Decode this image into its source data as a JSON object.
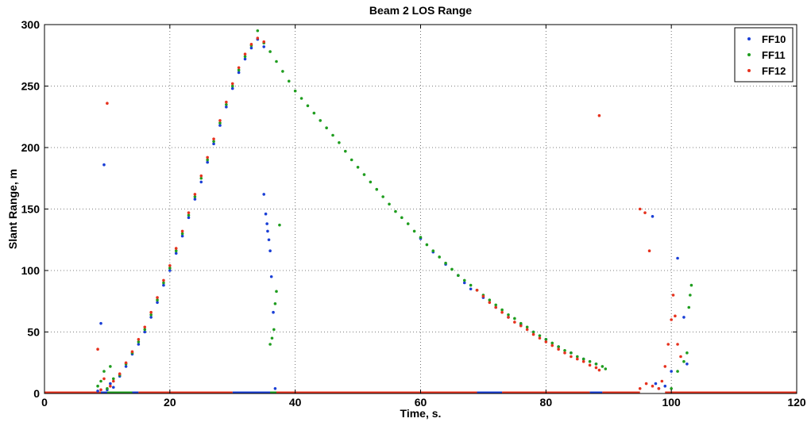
{
  "chart_data": {
    "type": "scatter",
    "title": "Beam 2 LOS Range",
    "xlabel": "Time, s.",
    "ylabel": "Slant Range, m",
    "xlim": [
      0,
      120
    ],
    "ylim": [
      0,
      300
    ],
    "xticks": [
      0,
      20,
      40,
      60,
      80,
      100,
      120
    ],
    "yticks": [
      0,
      50,
      100,
      150,
      200,
      250,
      300
    ],
    "grid": true,
    "legend_position": "top-right",
    "series": [
      {
        "name": "FF10",
        "color": "#1a3fd6",
        "points": [
          [
            8.5,
            2
          ],
          [
            9.0,
            57
          ],
          [
            9.5,
            186
          ],
          [
            10.0,
            3
          ],
          [
            10.5,
            8
          ],
          [
            11.0,
            5
          ],
          [
            12.0,
            14
          ],
          [
            13.0,
            22
          ],
          [
            14.0,
            32
          ],
          [
            15.0,
            40
          ],
          [
            16.0,
            50
          ],
          [
            17.0,
            62
          ],
          [
            18.0,
            74
          ],
          [
            19.0,
            88
          ],
          [
            20.0,
            100
          ],
          [
            21.0,
            114
          ],
          [
            22.0,
            128
          ],
          [
            23.0,
            143
          ],
          [
            24.0,
            158
          ],
          [
            25.0,
            172
          ],
          [
            26.0,
            188
          ],
          [
            27.0,
            203
          ],
          [
            28.0,
            218
          ],
          [
            29.0,
            233
          ],
          [
            30.0,
            248
          ],
          [
            31.0,
            261
          ],
          [
            32.0,
            272
          ],
          [
            33.0,
            281
          ],
          [
            34.0,
            288
          ],
          [
            35.0,
            282
          ],
          [
            35.0,
            162
          ],
          [
            35.3,
            146
          ],
          [
            35.5,
            138
          ],
          [
            35.6,
            132
          ],
          [
            35.8,
            125
          ],
          [
            36.0,
            116
          ],
          [
            36.2,
            95
          ],
          [
            36.5,
            66
          ],
          [
            36.8,
            4
          ],
          [
            60.0,
            126
          ],
          [
            62.0,
            115
          ],
          [
            64.0,
            105
          ],
          [
            66.0,
            96
          ],
          [
            67.0,
            90
          ],
          [
            68.0,
            85
          ],
          [
            70.0,
            78
          ],
          [
            72.0,
            70
          ],
          [
            74.0,
            62
          ],
          [
            76.0,
            56
          ],
          [
            78.0,
            50
          ],
          [
            80.0,
            44
          ],
          [
            82.0,
            38
          ],
          [
            84.0,
            33
          ],
          [
            86.0,
            28
          ],
          [
            88.0,
            24
          ],
          [
            97.0,
            144
          ],
          [
            97.5,
            8
          ],
          [
            98.0,
            4
          ],
          [
            99.0,
            6
          ],
          [
            100.0,
            18
          ],
          [
            101.0,
            110
          ],
          [
            102.0,
            62
          ],
          [
            102.5,
            24
          ]
        ]
      },
      {
        "name": "FF11",
        "color": "#1f9d1f",
        "points": [
          [
            8.5,
            6
          ],
          [
            9.0,
            10
          ],
          [
            9.5,
            18
          ],
          [
            10.0,
            4
          ],
          [
            10.5,
            22
          ],
          [
            11.0,
            12
          ],
          [
            12.0,
            15
          ],
          [
            13.0,
            24
          ],
          [
            14.0,
            33
          ],
          [
            15.0,
            42
          ],
          [
            16.0,
            52
          ],
          [
            17.0,
            64
          ],
          [
            18.0,
            76
          ],
          [
            19.0,
            90
          ],
          [
            20.0,
            102
          ],
          [
            21.0,
            116
          ],
          [
            22.0,
            130
          ],
          [
            23.0,
            145
          ],
          [
            24.0,
            160
          ],
          [
            25.0,
            175
          ],
          [
            26.0,
            190
          ],
          [
            27.0,
            205
          ],
          [
            28.0,
            220
          ],
          [
            29.0,
            235
          ],
          [
            30.0,
            250
          ],
          [
            31.0,
            263
          ],
          [
            32.0,
            274
          ],
          [
            33.0,
            283
          ],
          [
            34.0,
            295
          ],
          [
            35.0,
            285
          ],
          [
            36.0,
            278
          ],
          [
            37.0,
            270
          ],
          [
            38.0,
            262
          ],
          [
            39.0,
            254
          ],
          [
            40.0,
            246
          ],
          [
            41.0,
            240
          ],
          [
            42.0,
            234
          ],
          [
            43.0,
            228
          ],
          [
            44.0,
            222
          ],
          [
            45.0,
            216
          ],
          [
            46.0,
            210
          ],
          [
            47.0,
            204
          ],
          [
            48.0,
            197
          ],
          [
            49.0,
            190
          ],
          [
            50.0,
            184
          ],
          [
            51.0,
            178
          ],
          [
            52.0,
            172
          ],
          [
            53.0,
            166
          ],
          [
            54.0,
            160
          ],
          [
            55.0,
            154
          ],
          [
            56.0,
            148
          ],
          [
            57.0,
            143
          ],
          [
            58.0,
            138
          ],
          [
            59.0,
            132
          ],
          [
            60.0,
            127
          ],
          [
            61.0,
            121
          ],
          [
            62.0,
            116
          ],
          [
            63.0,
            111
          ],
          [
            64.0,
            106
          ],
          [
            65.0,
            101
          ],
          [
            66.0,
            96
          ],
          [
            67.0,
            92
          ],
          [
            68.0,
            88
          ],
          [
            69.0,
            84
          ],
          [
            70.0,
            80
          ],
          [
            71.0,
            76
          ],
          [
            72.0,
            72
          ],
          [
            73.0,
            68
          ],
          [
            74.0,
            64
          ],
          [
            75.0,
            61
          ],
          [
            76.0,
            57
          ],
          [
            77.0,
            54
          ],
          [
            78.0,
            50
          ],
          [
            79.0,
            47
          ],
          [
            80.0,
            44
          ],
          [
            81.0,
            41
          ],
          [
            82.0,
            38
          ],
          [
            83.0,
            35
          ],
          [
            84.0,
            33
          ],
          [
            85.0,
            30
          ],
          [
            86.0,
            28
          ],
          [
            87.0,
            26
          ],
          [
            88.0,
            24
          ],
          [
            89.0,
            22
          ],
          [
            89.5,
            20
          ],
          [
            36.0,
            40
          ],
          [
            36.3,
            45
          ],
          [
            36.6,
            52
          ],
          [
            36.8,
            73
          ],
          [
            37.0,
            83
          ],
          [
            37.5,
            137
          ],
          [
            100.0,
            4
          ],
          [
            101.0,
            18
          ],
          [
            102.0,
            26
          ],
          [
            102.5,
            33
          ],
          [
            102.8,
            70
          ],
          [
            103.0,
            80
          ],
          [
            103.2,
            88
          ]
        ]
      },
      {
        "name": "FF12",
        "color": "#e6321e",
        "points": [
          [
            8.5,
            36
          ],
          [
            9.0,
            3
          ],
          [
            9.5,
            12
          ],
          [
            10.0,
            236
          ],
          [
            10.5,
            6
          ],
          [
            11.0,
            10
          ],
          [
            12.0,
            16
          ],
          [
            13.0,
            25
          ],
          [
            14.0,
            34
          ],
          [
            15.0,
            44
          ],
          [
            16.0,
            54
          ],
          [
            17.0,
            66
          ],
          [
            18.0,
            78
          ],
          [
            19.0,
            92
          ],
          [
            20.0,
            104
          ],
          [
            21.0,
            118
          ],
          [
            22.0,
            132
          ],
          [
            23.0,
            147
          ],
          [
            24.0,
            162
          ],
          [
            25.0,
            177
          ],
          [
            26.0,
            192
          ],
          [
            27.0,
            207
          ],
          [
            28.0,
            222
          ],
          [
            29.0,
            237
          ],
          [
            30.0,
            252
          ],
          [
            31.0,
            265
          ],
          [
            32.0,
            276
          ],
          [
            33.0,
            284
          ],
          [
            34.0,
            289
          ],
          [
            35.0,
            286
          ],
          [
            69.0,
            84
          ],
          [
            70.0,
            79
          ],
          [
            71.0,
            74
          ],
          [
            72.0,
            70
          ],
          [
            73.0,
            66
          ],
          [
            74.0,
            62
          ],
          [
            75.0,
            58
          ],
          [
            76.0,
            55
          ],
          [
            77.0,
            52
          ],
          [
            78.0,
            48
          ],
          [
            79.0,
            45
          ],
          [
            80.0,
            42
          ],
          [
            81.0,
            39
          ],
          [
            82.0,
            36
          ],
          [
            83.0,
            33
          ],
          [
            84.0,
            30
          ],
          [
            85.0,
            28
          ],
          [
            86.0,
            26
          ],
          [
            87.0,
            23
          ],
          [
            88.0,
            21
          ],
          [
            88.5,
            19
          ],
          [
            88.5,
            226
          ],
          [
            95.0,
            150
          ],
          [
            95.8,
            147
          ],
          [
            96.5,
            116
          ],
          [
            95.0,
            4
          ],
          [
            96.0,
            8
          ],
          [
            97.0,
            6
          ],
          [
            98.0,
            4
          ],
          [
            98.5,
            10
          ],
          [
            99.0,
            22
          ],
          [
            99.5,
            40
          ],
          [
            100.0,
            60
          ],
          [
            100.3,
            80
          ],
          [
            100.6,
            63
          ],
          [
            101.0,
            40
          ],
          [
            101.5,
            30
          ]
        ]
      }
    ]
  }
}
